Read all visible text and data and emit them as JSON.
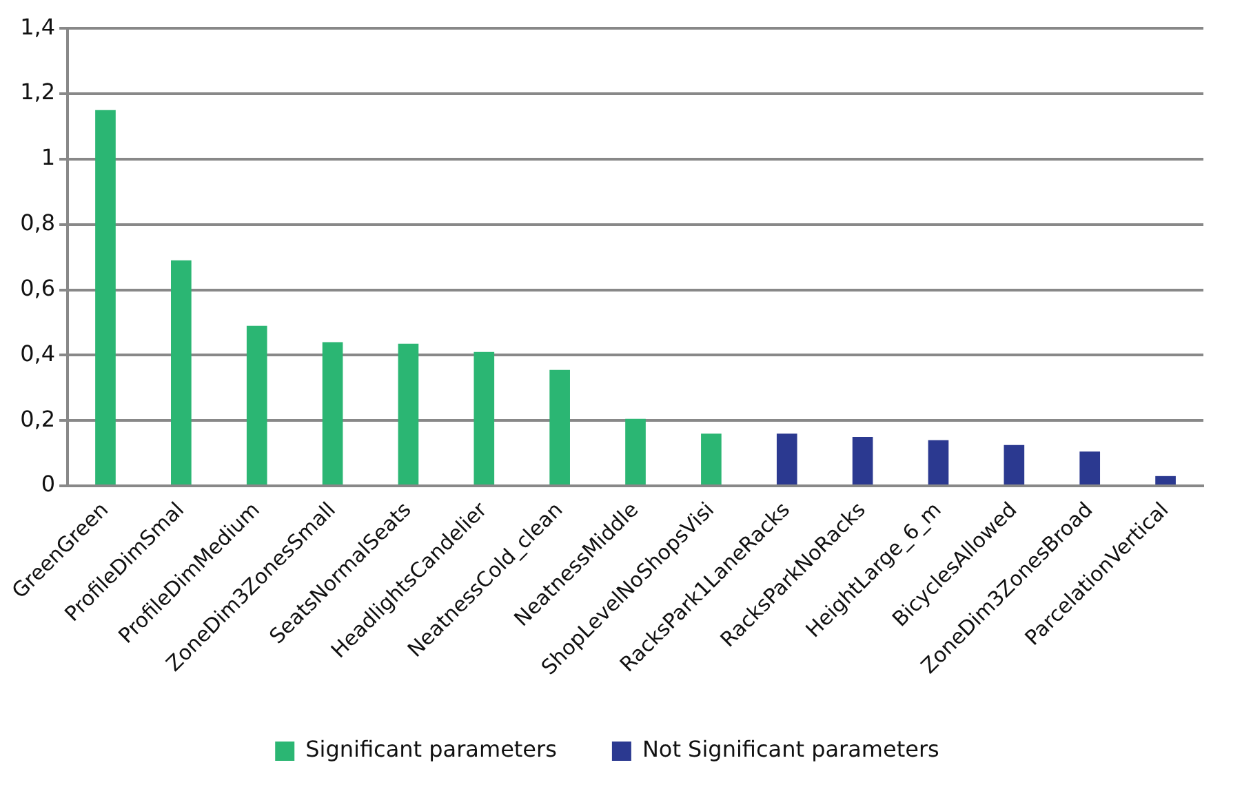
{
  "chart_data": {
    "type": "bar",
    "categories": [
      "GreenGreen",
      "ProfileDimSmal",
      "ProfileDimMedium",
      "ZoneDim3ZonesSmall",
      "SeatsNormalSeats",
      "HeadlightsCandelier",
      "NeatnessCold_clean",
      "NeatnessMiddle",
      "ShopLevelNoShopsVisi",
      "RacksPark1LaneRacks",
      "RacksParkNoRacks",
      "HeightLarge_6_m",
      "BicyclesAllowed",
      "ZoneDim3ZonesBroad",
      "ParcelationVertical"
    ],
    "series": [
      {
        "name": "Significant parameters",
        "color": "#2bb673",
        "values": [
          1.15,
          0.69,
          0.49,
          0.44,
          0.435,
          0.41,
          0.355,
          0.205,
          0.16,
          null,
          null,
          null,
          null,
          null,
          null
        ]
      },
      {
        "name": "Not Significant parameters",
        "color": "#2b3990",
        "values": [
          null,
          null,
          null,
          null,
          null,
          null,
          null,
          null,
          null,
          0.16,
          0.15,
          0.14,
          0.125,
          0.105,
          0.03
        ]
      }
    ],
    "ylim": [
      0,
      1.4
    ],
    "yticks": [
      0,
      {
        "value": 0.2,
        "label": "0,2"
      },
      {
        "value": 0.4,
        "label": "0,4"
      },
      {
        "value": 0.6,
        "label": "0,6"
      },
      {
        "value": 0.8,
        "label": "0,8"
      },
      1,
      {
        "value": 1.2,
        "label": "1,2"
      },
      {
        "value": 1.4,
        "label": "1,4"
      }
    ],
    "grid": "y",
    "legend": "bottom"
  }
}
